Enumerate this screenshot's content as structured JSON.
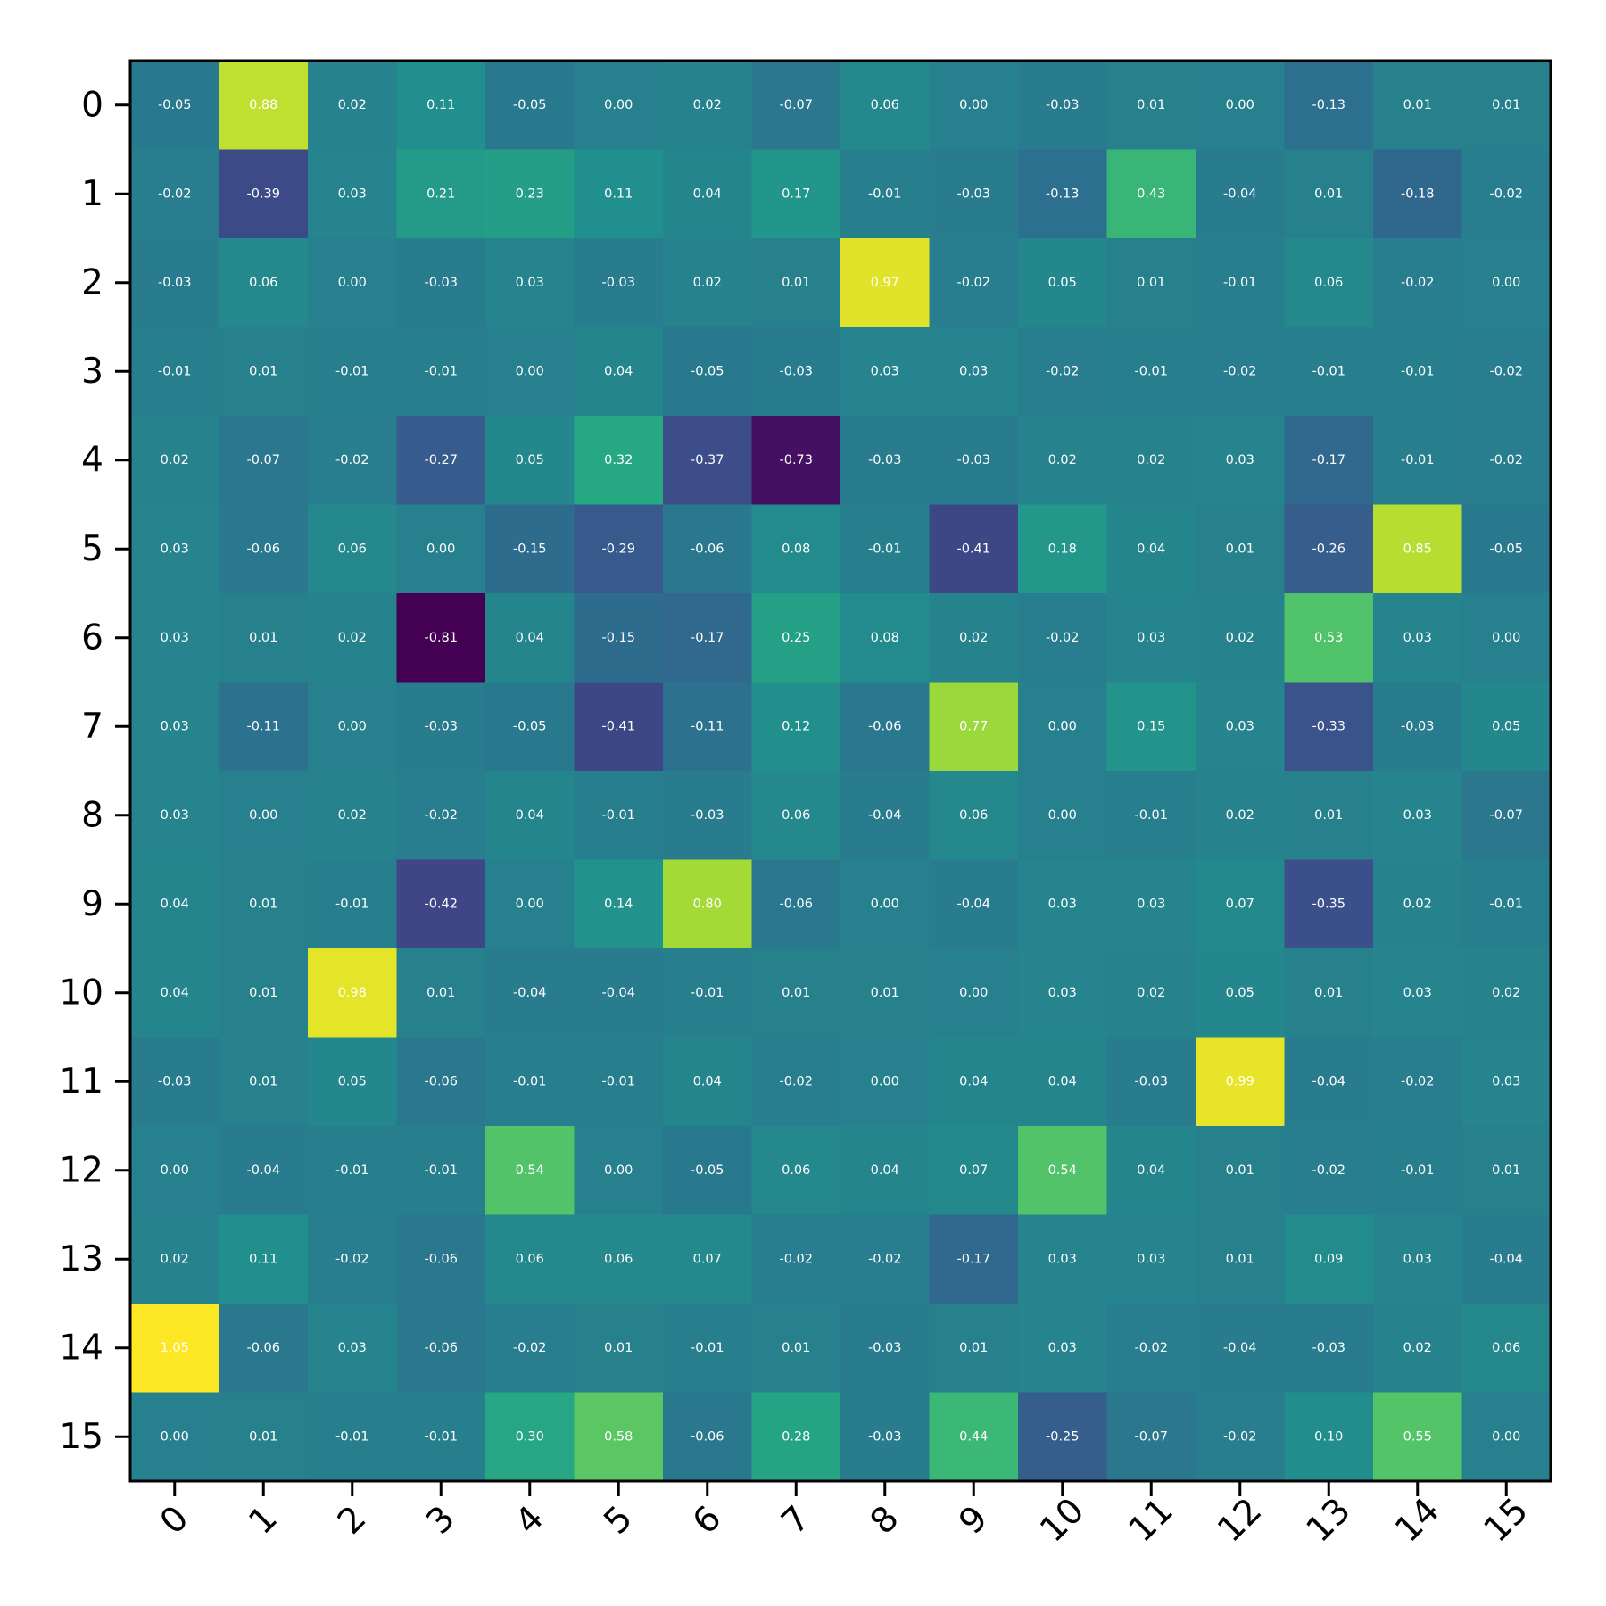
{
  "chart_data": {
    "type": "heatmap",
    "colormap": "viridis",
    "color_range": [
      -0.81,
      1.05
    ],
    "xlabel": "",
    "ylabel": "",
    "x_categories": [
      "0",
      "1",
      "2",
      "3",
      "4",
      "5",
      "6",
      "7",
      "8",
      "9",
      "10",
      "11",
      "12",
      "13",
      "14",
      "15"
    ],
    "y_categories": [
      "0",
      "1",
      "2",
      "3",
      "4",
      "5",
      "6",
      "7",
      "8",
      "9",
      "10",
      "11",
      "12",
      "13",
      "14",
      "15"
    ],
    "x_tick_rotation_deg": 45,
    "grid": false,
    "values": [
      [
        -0.05,
        0.88,
        0.02,
        0.11,
        -0.05,
        -0.0,
        0.02,
        -0.07,
        0.06,
        0.0,
        -0.03,
        0.01,
        0.0,
        -0.13,
        0.01,
        0.01
      ],
      [
        -0.02,
        -0.39,
        0.03,
        0.21,
        0.23,
        0.11,
        0.04,
        0.17,
        -0.01,
        -0.03,
        -0.13,
        0.43,
        -0.04,
        0.01,
        -0.18,
        -0.02
      ],
      [
        -0.03,
        0.06,
        -0.0,
        -0.03,
        0.03,
        -0.03,
        0.02,
        0.01,
        0.97,
        -0.02,
        0.05,
        0.01,
        -0.01,
        0.06,
        -0.02,
        0.0
      ],
      [
        -0.01,
        0.01,
        -0.01,
        -0.01,
        -0.0,
        0.04,
        -0.05,
        -0.03,
        0.03,
        0.03,
        -0.02,
        -0.01,
        -0.02,
        -0.01,
        -0.01,
        -0.02
      ],
      [
        0.02,
        -0.07,
        -0.02,
        -0.27,
        0.05,
        0.32,
        -0.37,
        -0.73,
        -0.03,
        -0.03,
        0.02,
        0.02,
        0.03,
        -0.17,
        -0.01,
        -0.02
      ],
      [
        0.03,
        -0.06,
        0.06,
        0.0,
        -0.15,
        -0.29,
        -0.06,
        0.08,
        -0.01,
        -0.41,
        0.18,
        0.04,
        0.01,
        -0.26,
        0.85,
        -0.05
      ],
      [
        0.03,
        0.01,
        0.02,
        -0.81,
        0.04,
        -0.15,
        -0.17,
        0.25,
        0.08,
        0.02,
        -0.02,
        0.03,
        0.02,
        0.53,
        0.03,
        -0.0
      ],
      [
        0.03,
        -0.11,
        0.0,
        -0.03,
        -0.05,
        -0.41,
        -0.11,
        0.12,
        -0.06,
        0.77,
        -0.0,
        0.15,
        0.03,
        -0.33,
        -0.03,
        0.05
      ],
      [
        0.03,
        -0.0,
        0.02,
        -0.02,
        0.04,
        -0.01,
        -0.03,
        0.06,
        -0.04,
        0.06,
        0.0,
        -0.01,
        0.02,
        0.01,
        0.03,
        -0.07
      ],
      [
        0.04,
        0.01,
        -0.01,
        -0.42,
        0.0,
        0.14,
        0.8,
        -0.06,
        -0.0,
        -0.04,
        0.03,
        0.03,
        0.07,
        -0.35,
        0.02,
        -0.01
      ],
      [
        0.04,
        0.01,
        0.98,
        0.01,
        -0.04,
        -0.04,
        -0.01,
        0.01,
        0.01,
        -0.0,
        0.03,
        0.02,
        0.05,
        0.01,
        0.03,
        0.02
      ],
      [
        -0.03,
        0.01,
        0.05,
        -0.06,
        -0.01,
        -0.01,
        0.04,
        -0.02,
        0.0,
        0.04,
        0.04,
        -0.03,
        0.99,
        -0.04,
        -0.02,
        0.03
      ],
      [
        0.0,
        -0.04,
        -0.01,
        -0.01,
        0.54,
        -0.0,
        -0.05,
        0.06,
        0.04,
        0.07,
        0.54,
        0.04,
        0.01,
        -0.02,
        -0.01,
        0.01
      ],
      [
        0.02,
        0.11,
        -0.02,
        -0.06,
        0.06,
        0.06,
        0.07,
        -0.02,
        -0.02,
        -0.17,
        0.03,
        0.03,
        0.01,
        0.09,
        0.03,
        -0.04
      ],
      [
        1.05,
        -0.06,
        0.03,
        -0.06,
        -0.02,
        0.01,
        -0.01,
        0.01,
        -0.03,
        0.01,
        0.03,
        -0.02,
        -0.04,
        -0.03,
        0.02,
        0.06
      ],
      [
        0.0,
        0.01,
        -0.01,
        -0.01,
        0.3,
        0.58,
        -0.06,
        0.28,
        -0.03,
        0.44,
        -0.25,
        -0.07,
        -0.02,
        0.1,
        0.55,
        -0.0
      ]
    ]
  }
}
